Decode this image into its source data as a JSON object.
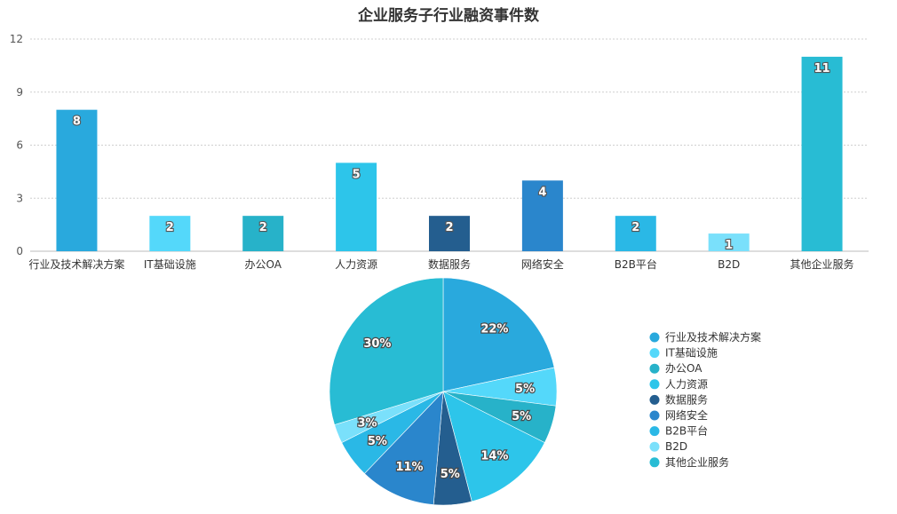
{
  "chart_data": [
    {
      "type": "bar",
      "title": "企业服务子行业融资事件数",
      "categories": [
        "行业及技术解决方案",
        "IT基础设施",
        "办公OA",
        "人力资源",
        "数据服务",
        "网络安全",
        "B2B平台",
        "B2D",
        "其他企业服务"
      ],
      "values": [
        8,
        2,
        2,
        5,
        2,
        4,
        2,
        1,
        11
      ],
      "data_labels": [
        "8",
        "2",
        "2",
        "5",
        "2",
        "4",
        "2",
        "1",
        "11"
      ],
      "ylim": [
        0,
        12
      ],
      "yticks": [
        "0",
        "3",
        "6",
        "9",
        "12"
      ],
      "grid": true,
      "colors": [
        "#29a9dd",
        "#54d8fa",
        "#27b2c9",
        "#2dc5ea",
        "#245e8f",
        "#2a86cc",
        "#2ab8e6",
        "#7ae0fb",
        "#28bcd4"
      ]
    },
    {
      "type": "pie",
      "categories": [
        "行业及技术解决方案",
        "IT基础设施",
        "办公OA",
        "人力资源",
        "数据服务",
        "网络安全",
        "B2B平台",
        "B2D",
        "其他企业服务"
      ],
      "values": [
        8,
        2,
        2,
        5,
        2,
        4,
        2,
        1,
        11
      ],
      "percent_labels": [
        "22%",
        "5%",
        "5%",
        "14%",
        "5%",
        "11%",
        "5%",
        "3%",
        "30%"
      ],
      "legend_placement": "right",
      "legend": [
        "行业及技术解决方案",
        "IT基础设施",
        "办公OA",
        "人力资源",
        "数据服务",
        "网络安全",
        "B2B平台",
        "B2D",
        "其他企业服务"
      ],
      "colors": [
        "#29a9dd",
        "#54d8fa",
        "#27b2c9",
        "#2dc5ea",
        "#245e8f",
        "#2a86cc",
        "#2ab8e6",
        "#7ae0fb",
        "#28bcd4"
      ]
    }
  ]
}
